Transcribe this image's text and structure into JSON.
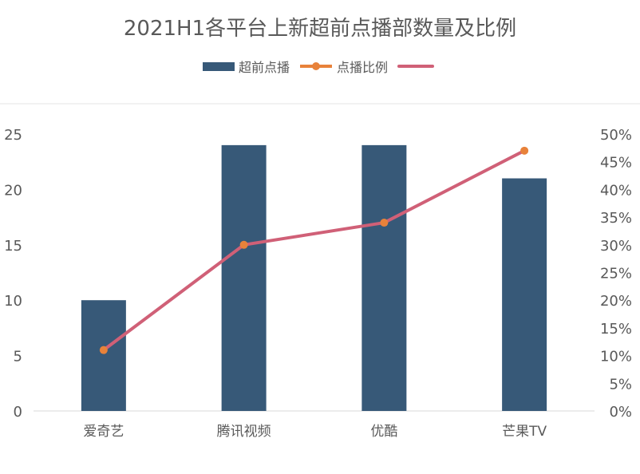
{
  "chart_data": {
    "type": "bar+line",
    "title": "2021H1各平台上新超前点播部数量及比例",
    "categories": [
      "爱奇艺",
      "腾讯视频",
      "优酷",
      "芒果TV"
    ],
    "series": [
      {
        "name": "超前点播",
        "type": "bar",
        "axis": "left",
        "values": [
          10,
          24,
          24,
          21
        ],
        "color": "#375978"
      },
      {
        "name": "点播比例",
        "type": "line",
        "axis": "right",
        "values": [
          0.11,
          0.3,
          0.34,
          0.47
        ],
        "color": "#d06077",
        "marker_color": "#e8823a"
      }
    ],
    "legend": {
      "position": "top",
      "items": [
        {
          "label": "超前点播",
          "kind": "bar",
          "color": "#375978"
        },
        {
          "label": "点播比例",
          "kind": "line-marker",
          "color": "#e8823a"
        },
        {
          "label": "",
          "kind": "line",
          "color": "#d06077"
        }
      ]
    },
    "y_left": {
      "range": [
        0,
        25
      ],
      "ticks": [
        "0",
        "5",
        "10",
        "15",
        "20",
        "25"
      ]
    },
    "y_right": {
      "range": [
        0,
        0.5
      ],
      "ticks": [
        "0%",
        "5%",
        "10%",
        "15%",
        "20%",
        "25%",
        "30%",
        "35%",
        "40%",
        "45%",
        "50%"
      ]
    },
    "grid": false
  }
}
